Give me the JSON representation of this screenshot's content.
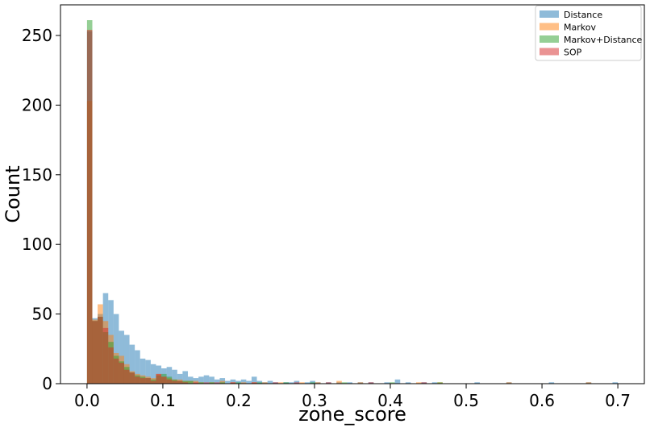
{
  "chart_data": {
    "type": "bar",
    "subtype": "overlaid-histogram",
    "xlabel": "zone_score",
    "ylabel": "Count",
    "xlim": [
      -0.035,
      0.735
    ],
    "ylim": [
      0,
      272
    ],
    "xticks": [
      0.0,
      0.1,
      0.2,
      0.3,
      0.4,
      0.5,
      0.6,
      0.7
    ],
    "xtick_labels": [
      "0.0",
      "0.1",
      "0.2",
      "0.3",
      "0.4",
      "0.5",
      "0.6",
      "0.7"
    ],
    "yticks": [
      0,
      50,
      100,
      150,
      200,
      250
    ],
    "ytick_labels": [
      "0",
      "50",
      "100",
      "150",
      "200",
      "250"
    ],
    "grid": false,
    "legend_position": "top-right",
    "bin_width": 0.007,
    "series": [
      {
        "name": "Distance",
        "color": "#1f77b4",
        "opacity": 0.5,
        "bins": [
          [
            0.0,
            253
          ],
          [
            0.007,
            47
          ],
          [
            0.014,
            50
          ],
          [
            0.021,
            65
          ],
          [
            0.028,
            60
          ],
          [
            0.035,
            50
          ],
          [
            0.042,
            38
          ],
          [
            0.049,
            35
          ],
          [
            0.056,
            28
          ],
          [
            0.063,
            24
          ],
          [
            0.07,
            18
          ],
          [
            0.077,
            17
          ],
          [
            0.084,
            14
          ],
          [
            0.091,
            13
          ],
          [
            0.098,
            11
          ],
          [
            0.105,
            12
          ],
          [
            0.112,
            10
          ],
          [
            0.119,
            7
          ],
          [
            0.126,
            9
          ],
          [
            0.133,
            5
          ],
          [
            0.14,
            4
          ],
          [
            0.147,
            5
          ],
          [
            0.154,
            6
          ],
          [
            0.161,
            5
          ],
          [
            0.168,
            3
          ],
          [
            0.175,
            4
          ],
          [
            0.182,
            2
          ],
          [
            0.189,
            3
          ],
          [
            0.196,
            2
          ],
          [
            0.203,
            3
          ],
          [
            0.21,
            2
          ],
          [
            0.217,
            5
          ],
          [
            0.224,
            2
          ],
          [
            0.231,
            1
          ],
          [
            0.238,
            2
          ],
          [
            0.245,
            1
          ],
          [
            0.259,
            1
          ],
          [
            0.266,
            1
          ],
          [
            0.273,
            2
          ],
          [
            0.287,
            1
          ],
          [
            0.294,
            2
          ],
          [
            0.301,
            1
          ],
          [
            0.315,
            1
          ],
          [
            0.329,
            1
          ],
          [
            0.343,
            1
          ],
          [
            0.357,
            1
          ],
          [
            0.371,
            1
          ],
          [
            0.392,
            1
          ],
          [
            0.406,
            3
          ],
          [
            0.42,
            1
          ],
          [
            0.441,
            1
          ],
          [
            0.455,
            1
          ],
          [
            0.511,
            1
          ],
          [
            0.553,
            1
          ],
          [
            0.609,
            1
          ],
          [
            0.658,
            1
          ],
          [
            0.693,
            1
          ]
        ]
      },
      {
        "name": "Markov",
        "color": "#ff7f0e",
        "opacity": 0.5,
        "bins": [
          [
            0.0,
            203
          ],
          [
            0.007,
            46
          ],
          [
            0.014,
            57
          ],
          [
            0.021,
            45
          ],
          [
            0.028,
            35
          ],
          [
            0.035,
            22
          ],
          [
            0.042,
            20
          ],
          [
            0.049,
            14
          ],
          [
            0.056,
            9
          ],
          [
            0.063,
            7
          ],
          [
            0.07,
            6
          ],
          [
            0.077,
            5
          ],
          [
            0.084,
            4
          ],
          [
            0.091,
            7
          ],
          [
            0.098,
            5
          ],
          [
            0.105,
            4
          ],
          [
            0.112,
            3
          ],
          [
            0.119,
            3
          ],
          [
            0.126,
            2
          ],
          [
            0.133,
            2
          ],
          [
            0.14,
            2
          ],
          [
            0.147,
            1
          ],
          [
            0.161,
            1
          ],
          [
            0.175,
            2
          ],
          [
            0.189,
            1
          ],
          [
            0.203,
            1
          ],
          [
            0.217,
            1
          ],
          [
            0.231,
            1
          ],
          [
            0.252,
            1
          ],
          [
            0.28,
            1
          ],
          [
            0.301,
            1
          ],
          [
            0.329,
            2
          ],
          [
            0.357,
            1
          ],
          [
            0.434,
            1
          ],
          [
            0.462,
            1
          ],
          [
            0.553,
            1
          ],
          [
            0.658,
            1
          ]
        ]
      },
      {
        "name": "Markov+Distance",
        "color": "#2ca02c",
        "opacity": 0.5,
        "bins": [
          [
            0.0,
            261
          ],
          [
            0.007,
            45
          ],
          [
            0.014,
            48
          ],
          [
            0.021,
            37
          ],
          [
            0.028,
            30
          ],
          [
            0.035,
            20
          ],
          [
            0.042,
            16
          ],
          [
            0.049,
            12
          ],
          [
            0.056,
            8
          ],
          [
            0.063,
            6
          ],
          [
            0.07,
            5
          ],
          [
            0.077,
            4
          ],
          [
            0.084,
            3
          ],
          [
            0.091,
            6
          ],
          [
            0.098,
            7
          ],
          [
            0.105,
            5
          ],
          [
            0.112,
            3
          ],
          [
            0.119,
            2
          ],
          [
            0.126,
            2
          ],
          [
            0.133,
            2
          ],
          [
            0.147,
            1
          ],
          [
            0.161,
            1
          ],
          [
            0.175,
            1
          ],
          [
            0.196,
            1
          ],
          [
            0.224,
            1
          ],
          [
            0.259,
            1
          ],
          [
            0.294,
            1
          ],
          [
            0.336,
            1
          ],
          [
            0.399,
            1
          ],
          [
            0.462,
            1
          ]
        ]
      },
      {
        "name": "SOP",
        "color": "#d62728",
        "opacity": 0.5,
        "bins": [
          [
            0.0,
            254
          ],
          [
            0.007,
            45
          ],
          [
            0.014,
            48
          ],
          [
            0.021,
            40
          ],
          [
            0.028,
            26
          ],
          [
            0.035,
            18
          ],
          [
            0.042,
            15
          ],
          [
            0.049,
            10
          ],
          [
            0.056,
            8
          ],
          [
            0.063,
            5
          ],
          [
            0.07,
            4
          ],
          [
            0.077,
            4
          ],
          [
            0.084,
            2
          ],
          [
            0.091,
            7
          ],
          [
            0.098,
            5
          ],
          [
            0.105,
            3
          ],
          [
            0.112,
            2
          ],
          [
            0.119,
            2
          ],
          [
            0.126,
            1
          ],
          [
            0.14,
            1
          ],
          [
            0.154,
            1
          ],
          [
            0.168,
            1
          ],
          [
            0.189,
            1
          ],
          [
            0.217,
            1
          ],
          [
            0.245,
            1
          ],
          [
            0.273,
            1
          ],
          [
            0.315,
            1
          ],
          [
            0.371,
            1
          ],
          [
            0.441,
            1
          ]
        ]
      }
    ]
  }
}
